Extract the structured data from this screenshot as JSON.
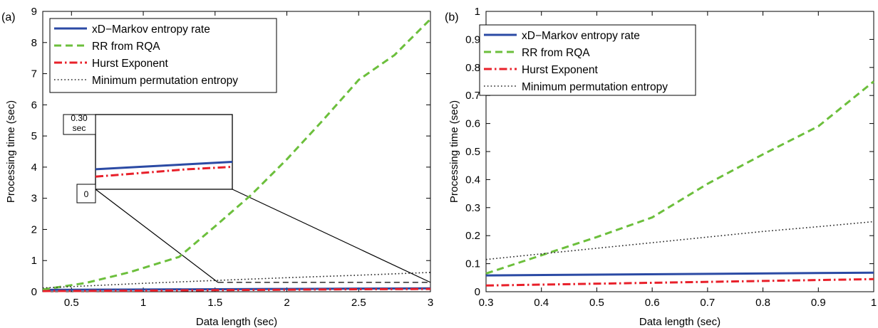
{
  "chart_data": [
    {
      "panel_label": "(a)",
      "type": "line",
      "xlabel": "Data length (sec)",
      "ylabel": "Processing time (sec)",
      "xlim": [
        0.3,
        3
      ],
      "ylim": [
        0,
        9
      ],
      "xticks": [
        0.5,
        1,
        1.5,
        2,
        2.5,
        3
      ],
      "yticks": [
        0,
        1,
        2,
        3,
        4,
        5,
        6,
        7,
        8,
        9
      ],
      "grid": false,
      "legend_position": "top-left",
      "series": [
        {
          "name": "xD−Markov entropy rate",
          "color": "#2b4aa4",
          "style": "solid",
          "x": [
            0.3,
            1.0,
            1.5,
            2.0,
            2.5,
            3.0
          ],
          "y": [
            0.06,
            0.07,
            0.08,
            0.09,
            0.1,
            0.11
          ]
        },
        {
          "name": "RR from RQA",
          "color": "#6cbf3c",
          "style": "dashed",
          "x": [
            0.3,
            0.6,
            0.9,
            1.25,
            1.5,
            1.75,
            2.0,
            2.25,
            2.5,
            2.75,
            3.0
          ],
          "y": [
            0.07,
            0.28,
            0.62,
            1.12,
            2.1,
            3.1,
            4.25,
            5.5,
            6.8,
            7.6,
            8.75
          ]
        },
        {
          "name": "Hurst Exponent",
          "color": "#e8202a",
          "style": "dashdot",
          "x": [
            0.3,
            1.0,
            1.5,
            2.0,
            2.5,
            3.0
          ],
          "y": [
            0.02,
            0.035,
            0.05,
            0.065,
            0.08,
            0.09
          ]
        },
        {
          "name": "Minimum permutation entropy",
          "color": "#222222",
          "style": "dotted",
          "x": [
            0.3,
            1.0,
            1.5,
            2.0,
            2.5,
            3.0
          ],
          "y": [
            0.12,
            0.27,
            0.36,
            0.45,
            0.53,
            0.62
          ]
        }
      ],
      "inset": {
        "top_label": "0.30\nsec",
        "bottom_label": "0",
        "xlim": [
          1.52,
          3.0
        ],
        "ylim": [
          0,
          0.3
        ]
      }
    },
    {
      "panel_label": "(b)",
      "type": "line",
      "xlabel": "Data length (sec)",
      "ylabel": "Processing time (sec)",
      "xlim": [
        0.3,
        1
      ],
      "ylim": [
        0,
        1
      ],
      "xticks": [
        0.3,
        0.4,
        0.5,
        0.6,
        0.7,
        0.8,
        0.9,
        1
      ],
      "yticks": [
        0,
        0.1,
        0.2,
        0.3,
        0.4,
        0.5,
        0.6,
        0.7,
        0.8,
        0.9,
        1
      ],
      "grid": false,
      "legend_position": "top-left",
      "series": [
        {
          "name": "xD−Markov entropy rate",
          "color": "#2b4aa4",
          "style": "solid",
          "x": [
            0.3,
            1.0
          ],
          "y": [
            0.058,
            0.068
          ]
        },
        {
          "name": "RR from RQA",
          "color": "#6cbf3c",
          "style": "dashed",
          "x": [
            0.3,
            0.4,
            0.5,
            0.6,
            0.7,
            0.8,
            0.9,
            1.0
          ],
          "y": [
            0.065,
            0.13,
            0.195,
            0.265,
            0.385,
            0.49,
            0.59,
            0.75
          ]
        },
        {
          "name": "Hurst Exponent",
          "color": "#e8202a",
          "style": "dashdot",
          "x": [
            0.3,
            1.0
          ],
          "y": [
            0.022,
            0.045
          ]
        },
        {
          "name": "Minimum permutation entropy",
          "color": "#222222",
          "style": "dotted",
          "x": [
            0.3,
            0.4,
            0.5,
            0.6,
            0.7,
            0.8,
            0.9,
            1.0
          ],
          "y": [
            0.115,
            0.135,
            0.155,
            0.175,
            0.195,
            0.215,
            0.232,
            0.25
          ]
        }
      ]
    }
  ]
}
